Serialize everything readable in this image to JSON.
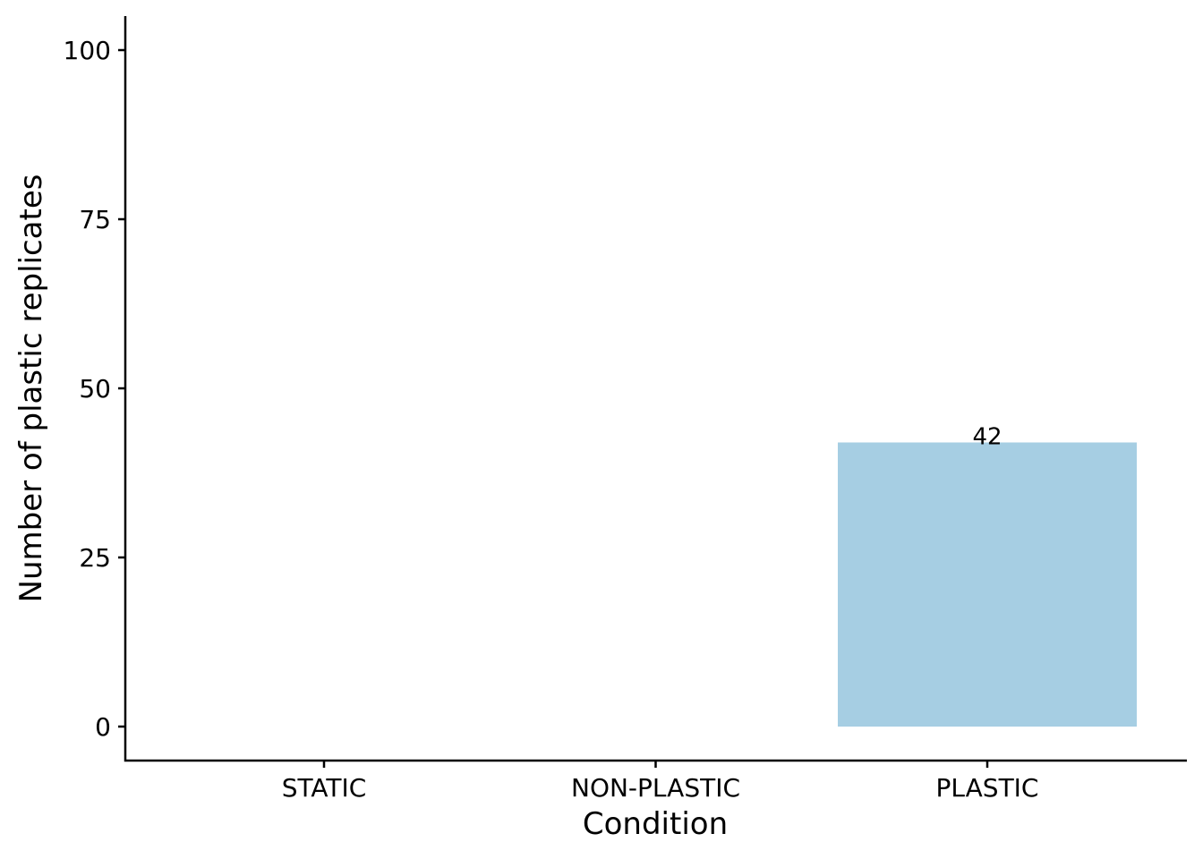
{
  "chart_data": {
    "type": "bar",
    "categories": [
      "STATIC",
      "NON-PLASTIC",
      "PLASTIC"
    ],
    "values": [
      0,
      0,
      42
    ],
    "data_labels": [
      "",
      "",
      "42"
    ],
    "xlabel": "Condition",
    "ylabel": "Number of plastic replicates",
    "yticks": [
      0,
      25,
      50,
      75,
      100
    ],
    "ylim": [
      -5,
      105
    ],
    "grid": false,
    "legend": "none",
    "bar_color": "#a6cee3"
  }
}
